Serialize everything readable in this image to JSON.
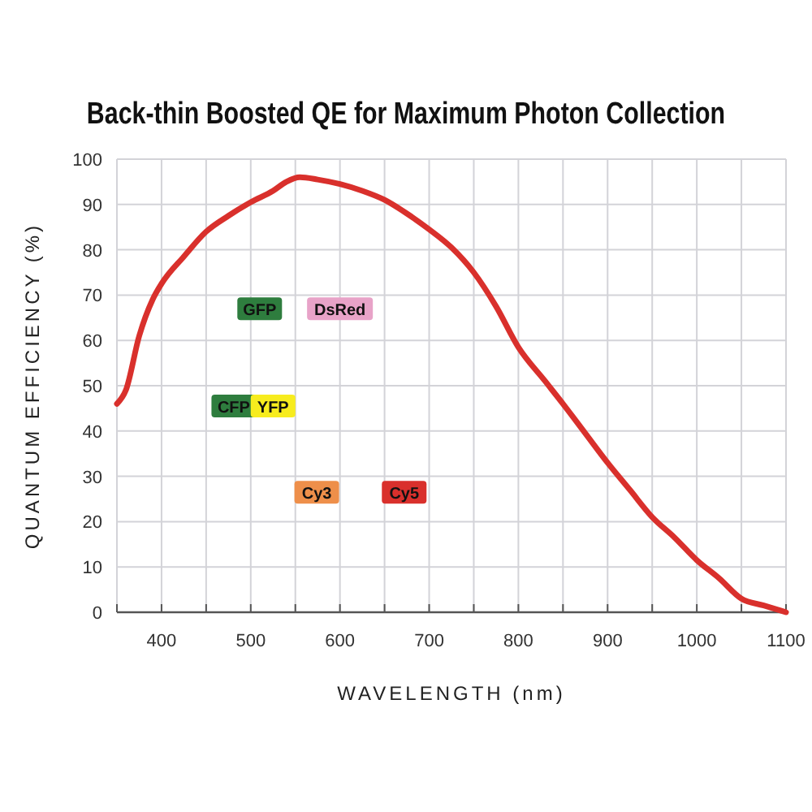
{
  "chart_data": {
    "type": "line",
    "title": "Back-thin Boosted QE for Maximum Photon Collection",
    "xlabel": "WAVELENGTH (nm)",
    "ylabel": "QUANTUM EFFICIENCY (%)",
    "x": [
      350,
      360,
      375,
      390,
      400,
      425,
      450,
      475,
      500,
      525,
      540,
      555,
      575,
      600,
      625,
      650,
      675,
      700,
      725,
      750,
      775,
      800,
      830,
      850,
      875,
      900,
      925,
      950,
      975,
      1000,
      1025,
      1050,
      1075,
      1100
    ],
    "series": [
      {
        "color": "#d9302c",
        "values": [
          46,
          49,
          61,
          69,
          72.5,
          78.5,
          84,
          87.5,
          90.5,
          93,
          95,
          96,
          95.5,
          94.5,
          93,
          91,
          88,
          84.5,
          80.5,
          75,
          67.5,
          58.5,
          51,
          46,
          39.5,
          33,
          27,
          21,
          16.5,
          11.5,
          7.5,
          3,
          1.5,
          0
        ]
      }
    ],
    "xlim": [
      350,
      1100
    ],
    "ylim": [
      0,
      100
    ],
    "xticks": [
      {
        "value": 350,
        "label": null
      },
      400,
      {
        "value": 450,
        "label": null
      },
      500,
      {
        "value": 550,
        "label": null
      },
      600,
      {
        "value": 650,
        "label": null
      },
      700,
      {
        "value": 750,
        "label": null
      },
      800,
      {
        "value": 850,
        "label": null
      },
      900,
      {
        "value": 950,
        "label": null
      },
      1000,
      {
        "value": 1050,
        "label": null
      },
      1100
    ],
    "yticks": [
      0,
      10,
      20,
      30,
      40,
      50,
      60,
      70,
      80,
      90,
      100
    ],
    "grid": true,
    "line_style": "solid",
    "marker": "none",
    "annotations": [
      {
        "text": "GFP",
        "x": 510,
        "y": 67
      },
      {
        "text": "DsRed",
        "x": 600,
        "y": 67
      },
      {
        "text": "CFP",
        "x": 481,
        "y": 45.5
      },
      {
        "text": "YFP",
        "x": 525,
        "y": 45.5
      },
      {
        "text": "Cy3",
        "x": 574,
        "y": 26.5
      },
      {
        "text": "Cy5",
        "x": 672,
        "y": 26.5
      }
    ]
  }
}
